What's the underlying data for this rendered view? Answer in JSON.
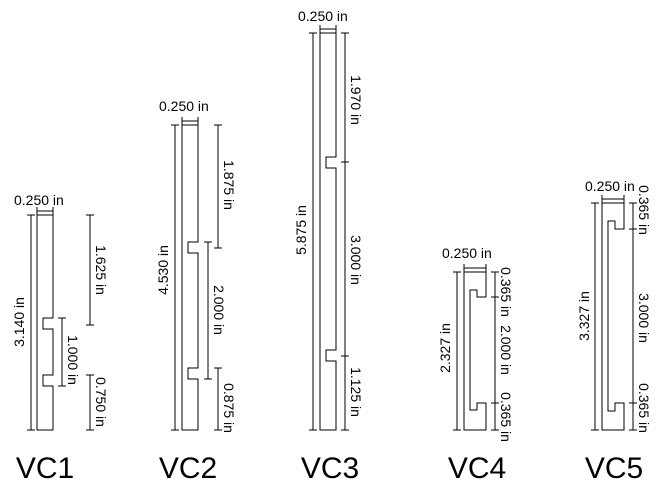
{
  "figures": [
    {
      "label": "VC1",
      "dims": {
        "width": "0.250 in",
        "total": "3.140 in",
        "upper": "1.625 in",
        "slot": "1.000 in",
        "lower": "0.750 in"
      }
    },
    {
      "label": "VC2",
      "dims": {
        "width": "0.250 in",
        "total": "4.530 in",
        "upper": "1.875 in",
        "slot": "2.000 in",
        "lower": "0.875 in"
      }
    },
    {
      "label": "VC3",
      "dims": {
        "width": "0.250 in",
        "total": "5.875 in",
        "upper": "1.970 in",
        "slot": "3.000 in",
        "lower": "1.125 in"
      }
    },
    {
      "label": "VC4",
      "dims": {
        "width": "0.250 in",
        "total": "2.327 in",
        "upper": "0.365 in",
        "slot": "2.000 in",
        "lower": "0.365 in"
      }
    },
    {
      "label": "VC5",
      "dims": {
        "width": "0.250 in",
        "total": "3.327 in",
        "upper": "0.365 in",
        "slot": "3.000 in",
        "lower": "0.365 in"
      }
    }
  ]
}
